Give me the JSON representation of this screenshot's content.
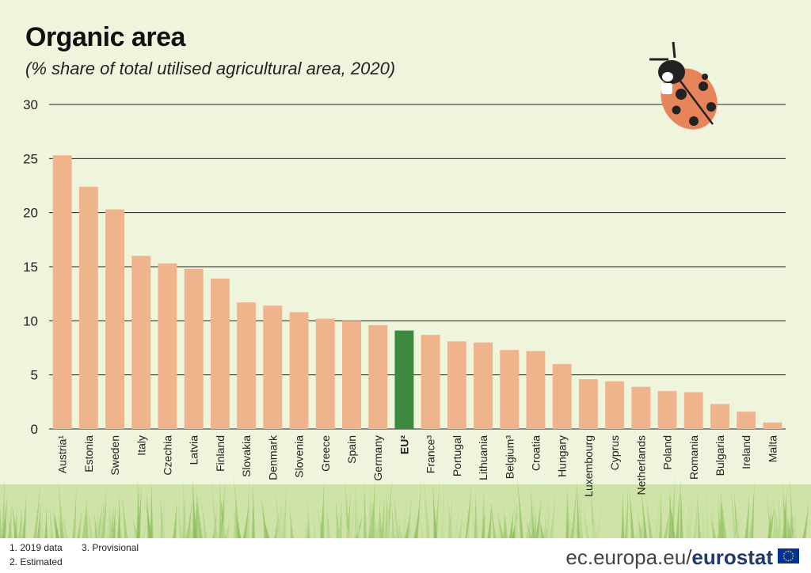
{
  "header": {
    "title": "Organic area",
    "subtitle": "(% share of total utilised agricultural area, 2020)"
  },
  "footer": {
    "notes": [
      "1. 2019 data",
      "2. Estimated",
      "3. Provisional"
    ],
    "source_url": "ec.europa.eu/",
    "source_brand": "eurostat"
  },
  "colors": {
    "bar": "#f0b48c",
    "highlight": "#3c8a3e",
    "background": "#eef5dc",
    "grid": "#222222"
  },
  "decorations": [
    "ladybug-icon",
    "grass-icon",
    "eu-flag-icon"
  ],
  "chart_data": {
    "type": "bar",
    "categories": [
      "Austria¹",
      "Estonia",
      "Sweden",
      "Italy",
      "Czechia",
      "Latvia",
      "Finland",
      "Slovakia",
      "Denmark",
      "Slovenia",
      "Greece",
      "Spain",
      "Germany",
      "EU²",
      "France³",
      "Portugal",
      "Lithuania",
      "Belgium³",
      "Croatia",
      "Hungary",
      "Luxembourg",
      "Cyprus",
      "Netherlands",
      "Poland",
      "Romania",
      "Bulgaria",
      "Ireland",
      "Malta"
    ],
    "values": [
      25.3,
      22.4,
      20.3,
      16.0,
      15.3,
      14.8,
      13.9,
      11.7,
      11.4,
      10.8,
      10.2,
      10.0,
      9.6,
      9.1,
      8.7,
      8.1,
      8.0,
      7.3,
      7.2,
      6.0,
      4.6,
      4.4,
      3.9,
      3.5,
      3.4,
      2.3,
      1.6,
      0.6
    ],
    "highlight_category": "EU²",
    "ylim": [
      0,
      30
    ],
    "yticks": [
      0,
      5,
      10,
      15,
      20,
      25,
      30
    ],
    "grid": true,
    "xlabel": "",
    "ylabel": ""
  }
}
